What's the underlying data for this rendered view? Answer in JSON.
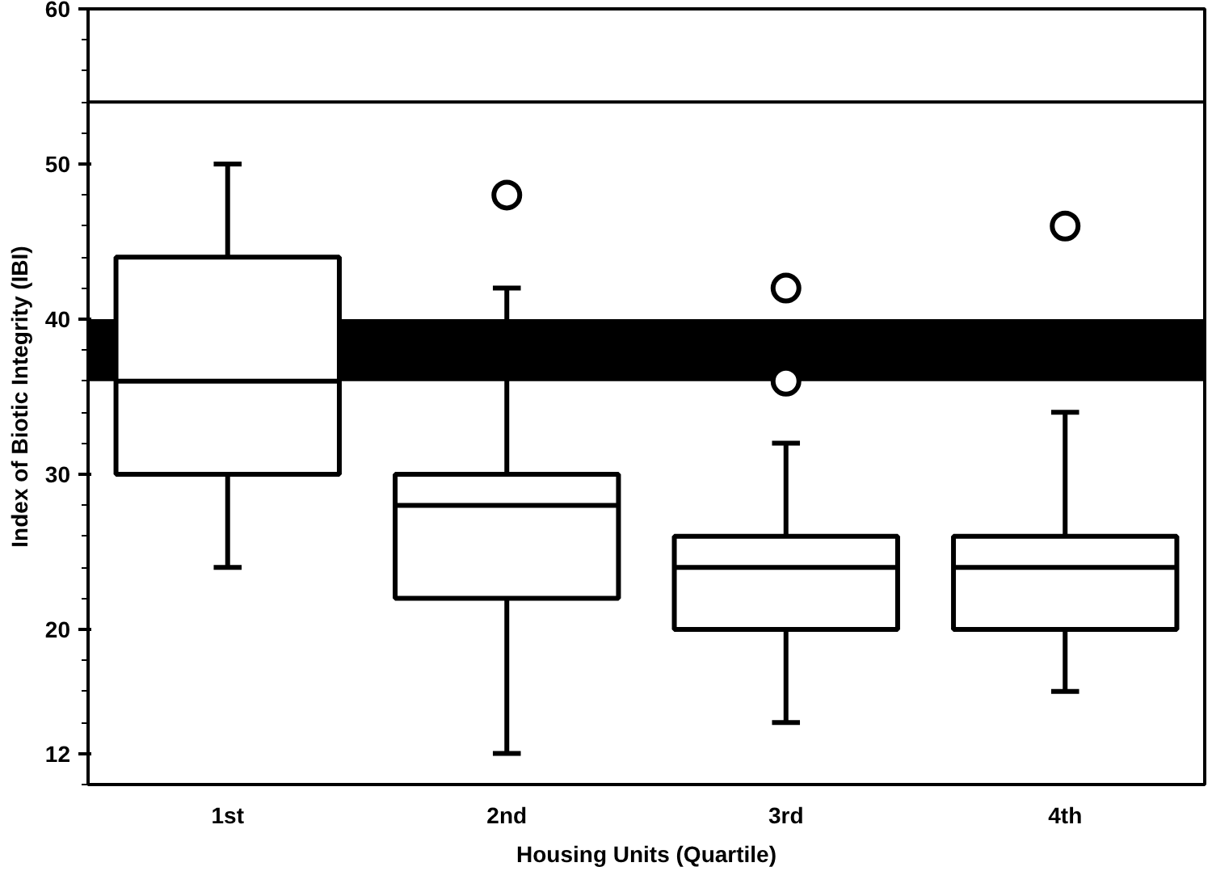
{
  "chart_data": {
    "type": "box",
    "xlabel": "Housing Units (Quartile)",
    "ylabel": "Index of Biotic Integrity (IBI)",
    "categories": [
      "1st",
      "2nd",
      "3rd",
      "4th"
    ],
    "boxes": [
      {
        "low": 24,
        "q1": 30,
        "median": 36,
        "q3": 44,
        "high": 50
      },
      {
        "low": 12,
        "q1": 22,
        "median": 28,
        "q3": 30,
        "high": 42,
        "outliers": [
          48
        ]
      },
      {
        "low": 14,
        "q1": 20,
        "median": 24,
        "q3": 26,
        "high": 32,
        "outliers": [
          42,
          36
        ]
      },
      {
        "low": 16,
        "q1": 20,
        "median": 24,
        "q3": 26,
        "high": 34,
        "outliers": [
          46
        ]
      }
    ],
    "ylim": [
      10,
      60
    ],
    "yticks": [
      12,
      20,
      30,
      40,
      50,
      60
    ],
    "grid": false,
    "ref_lines": [
      {
        "axis": "y",
        "value": 54,
        "color": "#000000"
      }
    ],
    "bands": [
      {
        "axis": "y",
        "from": 36,
        "to": 40,
        "color": "#000000"
      }
    ]
  }
}
